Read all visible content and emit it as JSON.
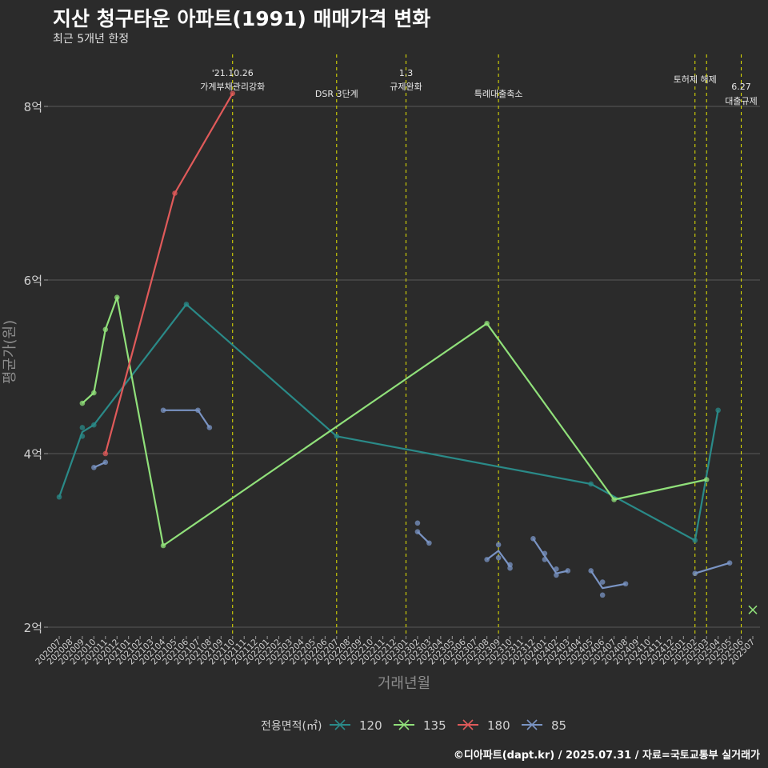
{
  "header": {
    "title": "지산 청구타운 아파트(1991) 매매가격 변화",
    "subtitle": "최근 5개년 한정"
  },
  "footer": {
    "credit": "©디아파트(dapt.kr) / 2025.07.31 / 자료=국토교통부 실거래가"
  },
  "colors": {
    "background": "#2b2b2b",
    "grid": "#5a5a5a",
    "event_line": "#e6e600",
    "text": "#cfcfcf",
    "s120": "#2a8a88",
    "s135": "#90e07a",
    "s180": "#e05a5a",
    "s85": "#7a94c4"
  },
  "chart_data": {
    "type": "line",
    "title": "지산 청구타운 아파트(1991) 매매가격 변화",
    "subtitle": "최근 5개년 한정",
    "xlabel": "거래년월",
    "ylabel": "평균가(원)",
    "ylim": [
      2,
      8.6
    ],
    "yticks": [
      2,
      4,
      6,
      8
    ],
    "ytick_labels": [
      "2억",
      "4억",
      "6억",
      "8억"
    ],
    "grid": true,
    "legend_title": "전용면적(㎡)",
    "legend_position": "bottom",
    "categories": [
      "202007",
      "202008",
      "202009",
      "202010",
      "202011",
      "202012",
      "202101",
      "202102",
      "202103",
      "202104",
      "202105",
      "202106",
      "202107",
      "202108",
      "202109",
      "202110",
      "202111",
      "202112",
      "202201",
      "202202",
      "202203",
      "202204",
      "202205",
      "202206",
      "202207",
      "202208",
      "202209",
      "202210",
      "202211",
      "202212",
      "202301",
      "202302",
      "202303",
      "202304",
      "202305",
      "202306",
      "202307",
      "202308",
      "202309",
      "202310",
      "202311",
      "202312",
      "202401",
      "202402",
      "202403",
      "202404",
      "202405",
      "202406",
      "202407",
      "202408",
      "202409",
      "202410",
      "202411",
      "202412",
      "202501",
      "202502",
      "202503",
      "202504",
      "202505",
      "202506",
      "202507"
    ],
    "events": [
      {
        "x": "202110",
        "lines": [
          "'21.10.26",
          "가계부채관리강화"
        ]
      },
      {
        "x": "202207",
        "lines": [
          "DSR 3단계"
        ]
      },
      {
        "x": "202301",
        "lines": [
          "1.3",
          "규제완화"
        ]
      },
      {
        "x": "202309",
        "lines": [
          "특례대출축소"
        ]
      },
      {
        "x": "202502",
        "lines": [
          "토허제 해제"
        ]
      },
      {
        "x": "202503",
        "lines": []
      },
      {
        "x": "202506",
        "lines": [
          "6.27",
          "대출규제"
        ]
      }
    ],
    "series": [
      {
        "name": "120",
        "line": [
          [
            "202007",
            3.5
          ],
          [
            "202009",
            4.25
          ],
          [
            "202010",
            4.33
          ],
          [
            "202106",
            5.72
          ],
          [
            "202207",
            4.2
          ],
          [
            "202405",
            3.65
          ],
          [
            "202502",
            3.0
          ],
          [
            "202504",
            4.5
          ]
        ],
        "points": [
          [
            "202007",
            3.5
          ],
          [
            "202009",
            4.3
          ],
          [
            "202009",
            4.2
          ],
          [
            "202010",
            4.33
          ],
          [
            "202106",
            5.72
          ],
          [
            "202207",
            4.2
          ],
          [
            "202405",
            3.65
          ],
          [
            "202502",
            3.0
          ],
          [
            "202504",
            4.5
          ]
        ]
      },
      {
        "name": "135",
        "line": [
          [
            "202009",
            4.58
          ],
          [
            "202010",
            4.7
          ],
          [
            "202011",
            5.43
          ],
          [
            "202012",
            5.8
          ],
          [
            "202104",
            2.94
          ],
          [
            "202308",
            5.5
          ],
          [
            "202407",
            3.47
          ],
          [
            "202503",
            3.7
          ]
        ],
        "points": [
          [
            "202009",
            4.58
          ],
          [
            "202010",
            4.7
          ],
          [
            "202011",
            5.43
          ],
          [
            "202012",
            5.8
          ],
          [
            "202104",
            2.94
          ],
          [
            "202308",
            5.5
          ],
          [
            "202407",
            3.47
          ],
          [
            "202503",
            3.7
          ]
        ]
      },
      {
        "name": "180",
        "line": [
          [
            "202011",
            4.0
          ],
          [
            "202105",
            7.0
          ],
          [
            "202110",
            8.15
          ]
        ],
        "points": [
          [
            "202011",
            4.0
          ],
          [
            "202105",
            7.0
          ],
          [
            "202110",
            8.15
          ]
        ]
      },
      {
        "name": "85",
        "segments": [
          [
            [
              "202010",
              3.84
            ],
            [
              "202011",
              3.9
            ]
          ],
          [
            [
              "202104",
              4.5
            ],
            [
              "202107",
              4.5
            ],
            [
              "202108",
              4.3
            ]
          ],
          [
            [
              "202302",
              3.1
            ],
            [
              "202303",
              2.97
            ]
          ],
          [
            [
              "202308",
              2.78
            ],
            [
              "202309",
              2.88
            ],
            [
              "202310",
              2.7
            ]
          ],
          [
            [
              "202312",
              3.02
            ],
            [
              "202401",
              2.82
            ],
            [
              "202402",
              2.62
            ],
            [
              "202403",
              2.65
            ]
          ],
          [
            [
              "202405",
              2.65
            ],
            [
              "202406",
              2.45
            ],
            [
              "202408",
              2.5
            ]
          ],
          [
            [
              "202502",
              2.62
            ],
            [
              "202505",
              2.74
            ]
          ]
        ],
        "points": [
          [
            "202010",
            3.84
          ],
          [
            "202011",
            3.9
          ],
          [
            "202104",
            4.5
          ],
          [
            "202107",
            4.5
          ],
          [
            "202108",
            4.3
          ],
          [
            "202302",
            3.2
          ],
          [
            "202302",
            3.1
          ],
          [
            "202303",
            2.97
          ],
          [
            "202308",
            2.78
          ],
          [
            "202309",
            2.95
          ],
          [
            "202309",
            2.8
          ],
          [
            "202310",
            2.72
          ],
          [
            "202310",
            2.68
          ],
          [
            "202312",
            3.02
          ],
          [
            "202401",
            2.85
          ],
          [
            "202401",
            2.78
          ],
          [
            "202402",
            2.67
          ],
          [
            "202402",
            2.6
          ],
          [
            "202403",
            2.65
          ],
          [
            "202405",
            2.65
          ],
          [
            "202406",
            2.52
          ],
          [
            "202406",
            2.37
          ],
          [
            "202408",
            2.5
          ],
          [
            "202502",
            2.62
          ],
          [
            "202505",
            2.74
          ]
        ]
      }
    ],
    "extra_marks": [
      {
        "series": "135",
        "shape": "cross",
        "x": "202507",
        "y": 2.2
      }
    ]
  }
}
